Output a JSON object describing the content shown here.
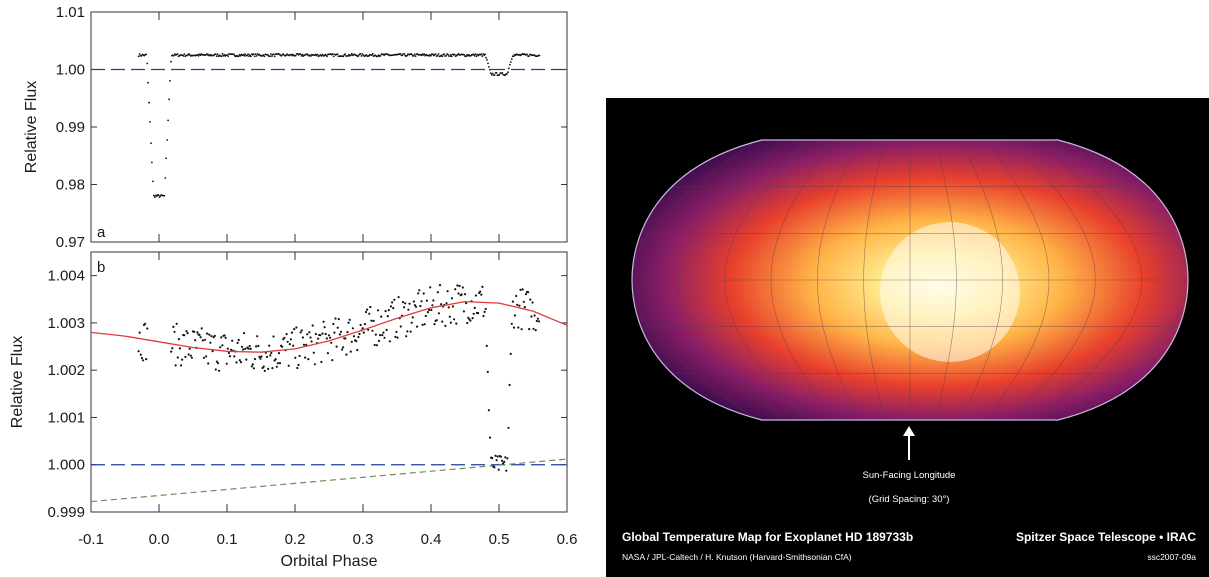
{
  "chart_data": [
    {
      "type": "scatter",
      "panel_label": "a",
      "xlabel": "",
      "ylabel": "Relative Flux",
      "xlim": [
        -0.1,
        0.6
      ],
      "ylim": [
        0.97,
        1.01
      ],
      "xticks": [
        -0.1,
        0.0,
        0.1,
        0.2,
        0.3,
        0.4,
        0.5,
        0.6
      ],
      "yticks": [
        "0.97",
        "0.98",
        "0.99",
        "1.00",
        "1.01"
      ],
      "reference_line": {
        "y": 1.0,
        "style": "dashed",
        "color": "#1f3f9f"
      },
      "series": [
        {
          "points_baseline": {
            "x_range": [
              -0.03,
              0.56
            ],
            "y": 1.0025
          },
          "transit": {
            "center": 0.0,
            "depth": 0.0245,
            "x_ingress": [
              -0.018,
              0.018
            ]
          },
          "secondary_eclipse": {
            "center": 0.5,
            "depth": 0.0033,
            "half_width": 0.02
          }
        }
      ]
    },
    {
      "type": "scatter",
      "panel_label": "b",
      "xlabel": "Orbital Phase",
      "ylabel": "Relative Flux",
      "xlim": [
        -0.1,
        0.6
      ],
      "ylim": [
        0.999,
        1.0045
      ],
      "xticks": [
        "-0.1",
        "0.0",
        "0.1",
        "0.2",
        "0.3",
        "0.4",
        "0.5",
        "0.6"
      ],
      "yticks": [
        "0.999",
        "1.000",
        "1.001",
        "1.002",
        "1.003",
        "1.004"
      ],
      "reference_line": {
        "y": 1.0,
        "style": "dashed",
        "color": "#1f3f9f"
      },
      "fit_curve": {
        "color": "#e23b3b",
        "x": [
          -0.1,
          -0.05,
          0.0,
          0.05,
          0.1,
          0.15,
          0.2,
          0.25,
          0.3,
          0.35,
          0.4,
          0.45,
          0.5,
          0.55,
          0.6
        ],
        "y": [
          1.0028,
          1.00272,
          1.0026,
          1.00248,
          1.0024,
          1.00238,
          1.00245,
          1.00262,
          1.00285,
          1.0031,
          1.00332,
          1.00345,
          1.00342,
          1.00325,
          1.00295
        ]
      },
      "trend_line": {
        "color": "#6b8f5a",
        "style": "dashed",
        "x": [
          -0.1,
          0.6
        ],
        "y": [
          0.99922,
          1.00012
        ]
      }
    }
  ],
  "map": {
    "title": "Global Temperature Map for Exoplanet HD 189733b",
    "instrument": "Spitzer Space Telescope • IRAC",
    "credit": "NASA / JPL-Caltech / H. Knutson (Harvard-Smithsonian CfA)",
    "id": "ssc2007-09a",
    "arrow_label": "Sun-Facing Longitude",
    "grid_note": "(Grid Spacing: 30°)"
  },
  "colors": {
    "background": "#ffffff",
    "data_points": "#111111",
    "map_background": "#000000",
    "map_hot": "#fffbe0",
    "map_warm": "#ffb347",
    "map_mid": "#e8402c",
    "map_cool": "#8a1e66",
    "map_edge": "#3a0b4e"
  }
}
